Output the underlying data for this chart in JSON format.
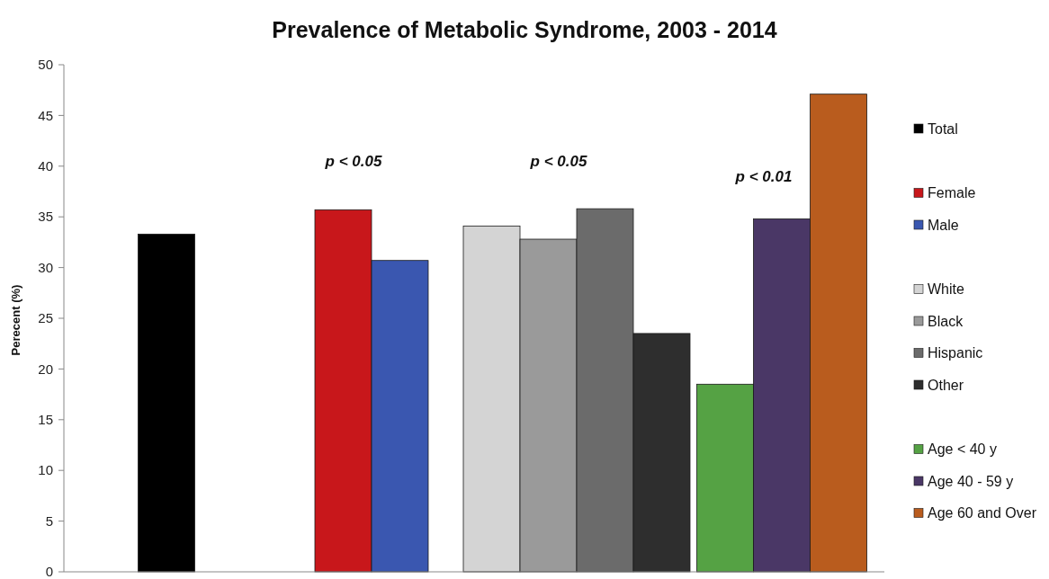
{
  "chart_data": {
    "type": "bar",
    "title": "Prevalence of Metabolic Syndrome, 2003 - 2014",
    "ylabel": "Perecent (%)",
    "categories": [
      null,
      null,
      null,
      null
    ],
    "series": [
      {
        "name": "Total",
        "color": "#000000",
        "values": [
          33.3,
          null,
          null,
          null
        ]
      },
      {
        "name": "Female",
        "color": "#c8171b",
        "values": [
          null,
          35.7,
          null,
          null
        ]
      },
      {
        "name": "Male",
        "color": "#3a57b0",
        "values": [
          null,
          30.7,
          null,
          null
        ]
      },
      {
        "name": "White",
        "color": "#d4d4d4",
        "values": [
          null,
          null,
          34.1,
          null
        ]
      },
      {
        "name": "Black",
        "color": "#9a9a9a",
        "values": [
          null,
          null,
          32.8,
          null
        ]
      },
      {
        "name": "Hispanic",
        "color": "#6b6b6b",
        "values": [
          null,
          null,
          35.8,
          null
        ]
      },
      {
        "name": "Other",
        "color": "#2e2e2e",
        "values": [
          null,
          null,
          23.5,
          null
        ]
      },
      {
        "name": "Age < 40 y",
        "color": "#55a244",
        "values": [
          null,
          null,
          null,
          18.5
        ]
      },
      {
        "name": "Age 40 - 59 y",
        "color": "#4a3766",
        "values": [
          null,
          null,
          null,
          34.8
        ]
      },
      {
        "name": "Age 60 and Over",
        "color": "#b95c1e",
        "values": [
          null,
          null,
          null,
          47.1
        ]
      }
    ],
    "annotations": [
      "p < 0.05",
      "p < 0.05",
      "p < 0.01"
    ],
    "ylim": [
      0,
      50
    ],
    "yticks": [
      0,
      5,
      10,
      15,
      20,
      25,
      30,
      35,
      40,
      45,
      50
    ],
    "grid": false,
    "legend": "right"
  }
}
